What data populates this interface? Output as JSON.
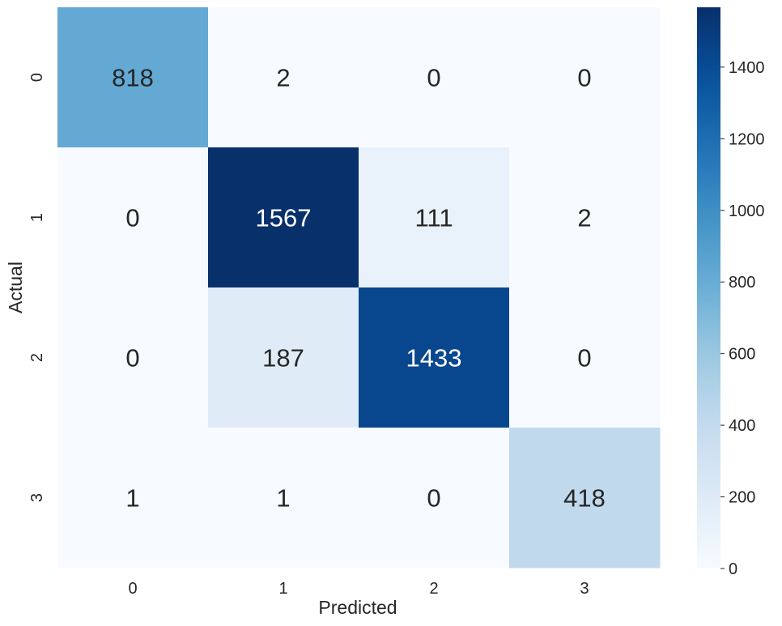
{
  "chart_data": {
    "type": "heatmap",
    "xlabel": "Predicted",
    "ylabel": "Actual",
    "x_categories": [
      "0",
      "1",
      "2",
      "3"
    ],
    "y_categories": [
      "0",
      "1",
      "2",
      "3"
    ],
    "values": [
      [
        818,
        2,
        0,
        0
      ],
      [
        0,
        1567,
        111,
        2
      ],
      [
        0,
        187,
        1433,
        0
      ],
      [
        1,
        1,
        0,
        418
      ]
    ],
    "colorbar": {
      "min": 0,
      "max": 1567,
      "ticks": [
        0,
        200,
        400,
        600,
        800,
        1000,
        1200,
        1400
      ],
      "colormap": "Blues"
    },
    "grid": false
  }
}
